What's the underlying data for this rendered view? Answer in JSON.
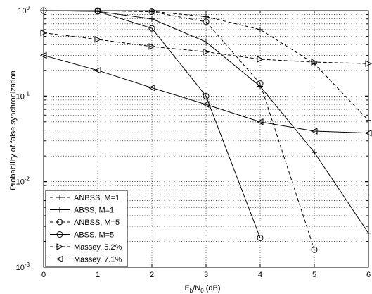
{
  "chart_data": {
    "type": "line",
    "xlabel_base": "E",
    "xlabel_sub1": "b",
    "xlabel_mid": "/N",
    "xlabel_sub2": "0",
    "xlabel_tail": " (dB)",
    "ylabel": "Probability of false synchronization",
    "xlim": [
      0,
      6
    ],
    "ylim": [
      0.001,
      1
    ],
    "yscale": "log",
    "grid": true,
    "legend_position": "bottom-left",
    "x_ticks": [
      "0",
      "1",
      "2",
      "3",
      "4",
      "5",
      "6"
    ],
    "y_ticks": [
      {
        "value": 1,
        "base": "10",
        "exp": "0"
      },
      {
        "value": 0.1,
        "base": "10",
        "exp": "-1"
      },
      {
        "value": 0.01,
        "base": "10",
        "exp": "-2"
      },
      {
        "value": 0.001,
        "base": "10",
        "exp": "-3"
      }
    ],
    "series": [
      {
        "name": "ANBSS, M=1",
        "dash": true,
        "marker": "plus",
        "x": [
          0,
          1,
          2,
          3,
          4,
          5,
          6
        ],
        "y": [
          1.0,
          1.0,
          0.98,
          0.85,
          0.6,
          0.24,
          0.052
        ]
      },
      {
        "name": "ABSS, M=1",
        "dash": false,
        "marker": "plus",
        "x": [
          0,
          1,
          2,
          3,
          4,
          5,
          6
        ],
        "y": [
          1.0,
          0.98,
          0.8,
          0.43,
          0.13,
          0.022,
          0.0025
        ]
      },
      {
        "name": "ANBSS, M=5",
        "dash": true,
        "marker": "circle",
        "x": [
          0,
          1,
          2,
          3,
          4,
          5
        ],
        "y": [
          1.0,
          1.0,
          0.97,
          0.74,
          0.14,
          0.0016
        ]
      },
      {
        "name": "ABSS, M=5",
        "dash": false,
        "marker": "circle",
        "x": [
          0,
          1,
          2,
          3,
          4
        ],
        "y": [
          1.0,
          0.98,
          0.62,
          0.1,
          0.0022
        ]
      },
      {
        "name": "Massey, 5.2%",
        "dash": true,
        "marker": "tri-right",
        "x": [
          0,
          1,
          2,
          3,
          4,
          5,
          6
        ],
        "y": [
          0.55,
          0.46,
          0.38,
          0.33,
          0.27,
          0.25,
          0.24
        ]
      },
      {
        "name": "Massey, 7.1%",
        "dash": false,
        "marker": "tri-left",
        "x": [
          0,
          1,
          2,
          3,
          4,
          5,
          6
        ],
        "y": [
          0.3,
          0.2,
          0.125,
          0.08,
          0.05,
          0.039,
          0.037
        ]
      }
    ]
  }
}
